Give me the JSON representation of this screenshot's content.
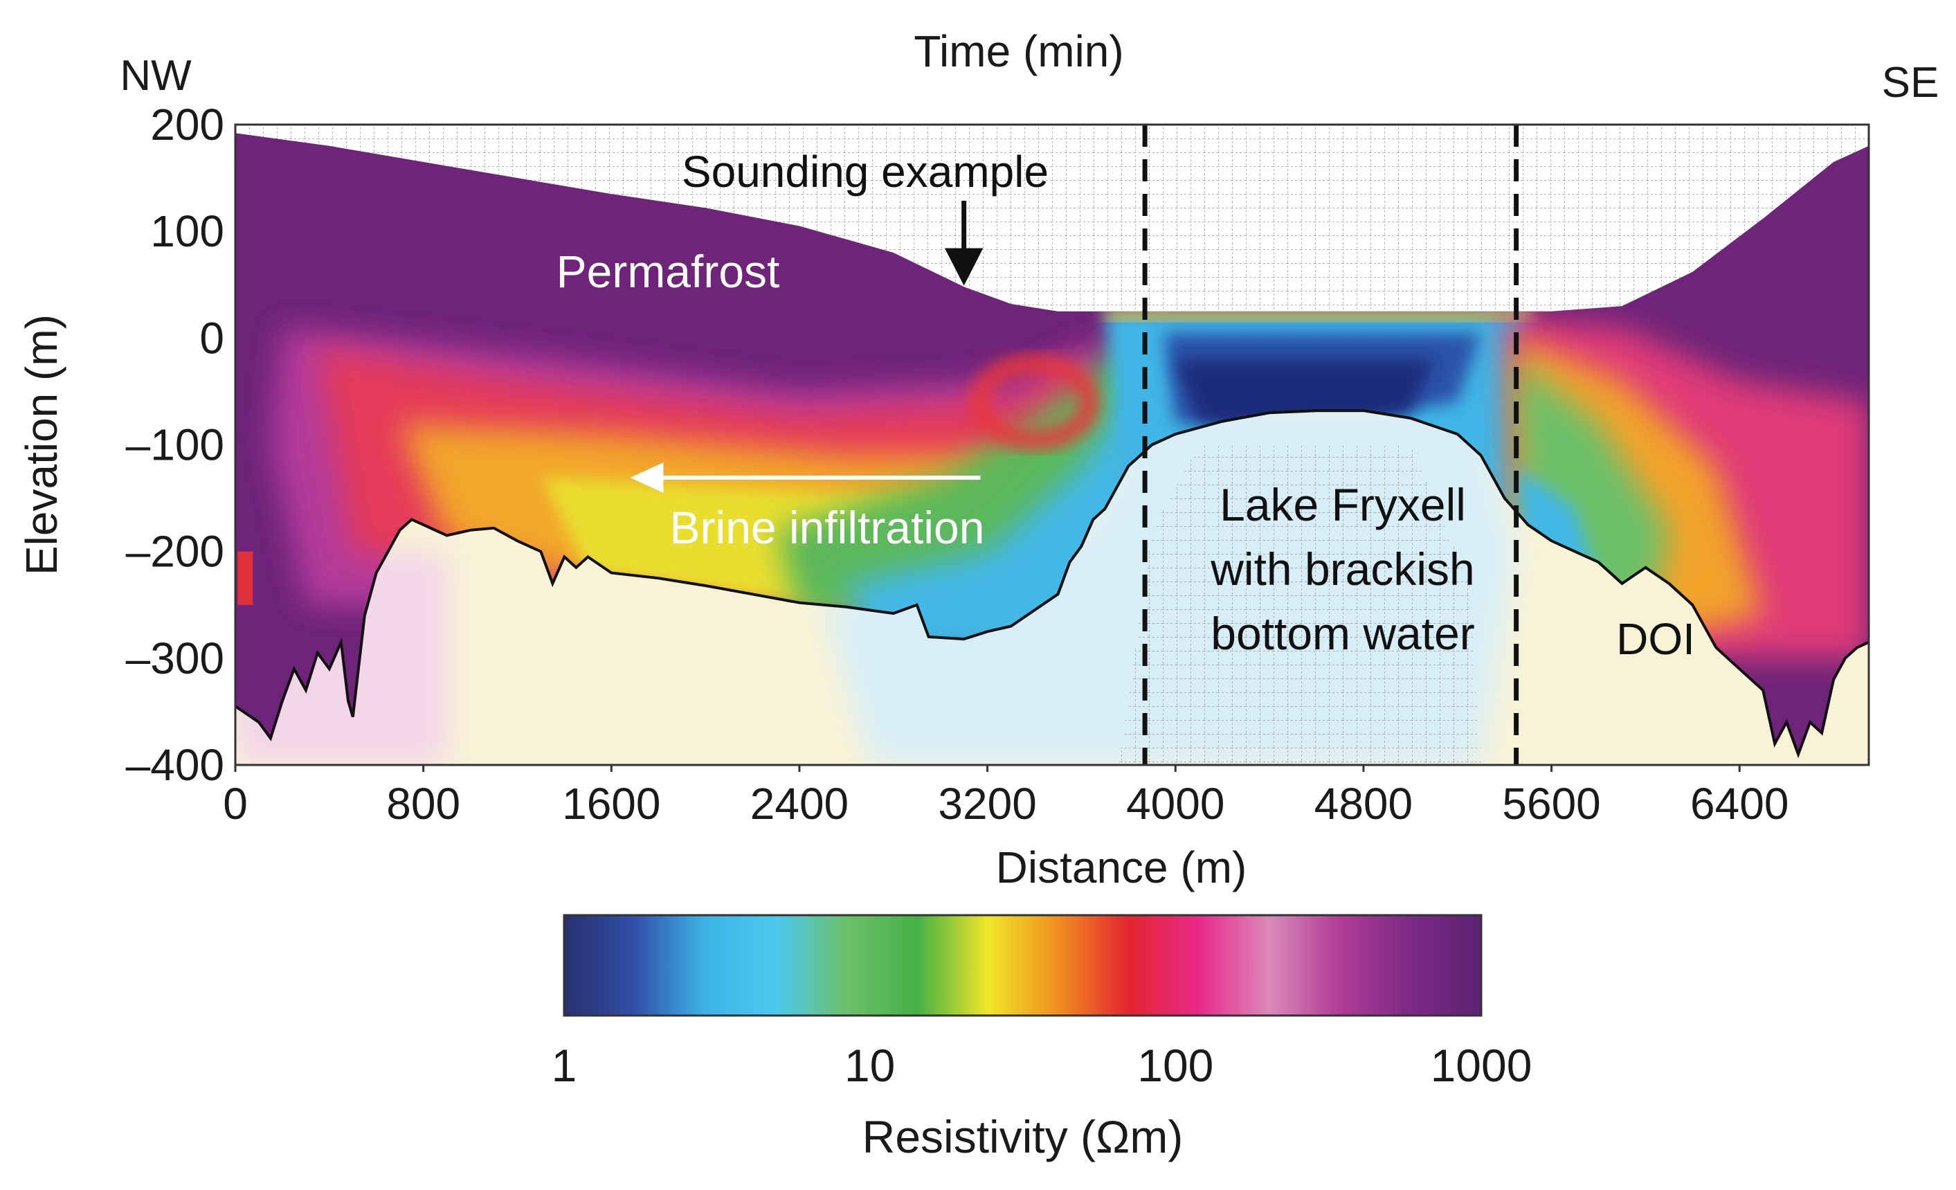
{
  "chart_data": {
    "type": "heatmap",
    "title": "",
    "top_label": "Time (min)",
    "orientation": {
      "left": "NW",
      "right": "SE"
    },
    "xlabel": "Distance (m)",
    "ylabel": "Elevation (m)",
    "xlim": [
      0,
      6950
    ],
    "ylim": [
      -400,
      200
    ],
    "x_ticks": [
      "0",
      "800",
      "1600",
      "2400",
      "3200",
      "4000",
      "4800",
      "5600",
      "6400"
    ],
    "y_ticks": [
      "200",
      "100",
      "0",
      "–100",
      "–200",
      "–300",
      "–400"
    ],
    "grid": true,
    "annotations": {
      "sounding": "Sounding example",
      "permafrost": "Permafrost",
      "brine": "Brine infiltration",
      "lake_line1": "Lake Fryxell",
      "lake_line2": "with brackish",
      "lake_line3": "bottom water",
      "doi": "DOI"
    },
    "dashed_lines_x": [
      3870,
      5450
    ],
    "sounding_x": 3100,
    "brine_arrow_x": [
      3170,
      1680
    ],
    "surface_profile": [
      [
        0,
        192
      ],
      [
        400,
        180
      ],
      [
        800,
        165
      ],
      [
        1200,
        150
      ],
      [
        1600,
        135
      ],
      [
        2000,
        122
      ],
      [
        2400,
        105
      ],
      [
        2800,
        80
      ],
      [
        3100,
        48
      ],
      [
        3300,
        32
      ],
      [
        3500,
        25
      ],
      [
        3800,
        25
      ],
      [
        4400,
        25
      ],
      [
        5000,
        25
      ],
      [
        5600,
        25
      ],
      [
        5900,
        30
      ],
      [
        6200,
        62
      ],
      [
        6500,
        112
      ],
      [
        6800,
        165
      ],
      [
        6950,
        180
      ]
    ],
    "doi_profile": [
      [
        0,
        -345
      ],
      [
        100,
        -360
      ],
      [
        150,
        -375
      ],
      [
        200,
        -340
      ],
      [
        250,
        -310
      ],
      [
        300,
        -330
      ],
      [
        350,
        -295
      ],
      [
        400,
        -310
      ],
      [
        450,
        -285
      ],
      [
        480,
        -340
      ],
      [
        500,
        -355
      ],
      [
        550,
        -260
      ],
      [
        600,
        -220
      ],
      [
        650,
        -200
      ],
      [
        700,
        -180
      ],
      [
        750,
        -170
      ],
      [
        800,
        -175
      ],
      [
        900,
        -185
      ],
      [
        1000,
        -180
      ],
      [
        1100,
        -178
      ],
      [
        1200,
        -190
      ],
      [
        1300,
        -200
      ],
      [
        1350,
        -230
      ],
      [
        1400,
        -205
      ],
      [
        1450,
        -215
      ],
      [
        1500,
        -205
      ],
      [
        1600,
        -220
      ],
      [
        1800,
        -225
      ],
      [
        2000,
        -232
      ],
      [
        2200,
        -240
      ],
      [
        2400,
        -248
      ],
      [
        2600,
        -252
      ],
      [
        2800,
        -258
      ],
      [
        2900,
        -250
      ],
      [
        2950,
        -280
      ],
      [
        3100,
        -282
      ],
      [
        3200,
        -275
      ],
      [
        3300,
        -270
      ],
      [
        3400,
        -255
      ],
      [
        3500,
        -240
      ],
      [
        3550,
        -210
      ],
      [
        3600,
        -195
      ],
      [
        3650,
        -170
      ],
      [
        3700,
        -160
      ],
      [
        3750,
        -140
      ],
      [
        3800,
        -120
      ],
      [
        3900,
        -100
      ],
      [
        4000,
        -90
      ],
      [
        4200,
        -78
      ],
      [
        4400,
        -70
      ],
      [
        4600,
        -68
      ],
      [
        4800,
        -68
      ],
      [
        5000,
        -75
      ],
      [
        5200,
        -90
      ],
      [
        5300,
        -110
      ],
      [
        5400,
        -150
      ],
      [
        5500,
        -175
      ],
      [
        5600,
        -190
      ],
      [
        5700,
        -200
      ],
      [
        5800,
        -210
      ],
      [
        5900,
        -230
      ],
      [
        6000,
        -215
      ],
      [
        6100,
        -230
      ],
      [
        6200,
        -250
      ],
      [
        6300,
        -290
      ],
      [
        6400,
        -310
      ],
      [
        6500,
        -330
      ],
      [
        6550,
        -380
      ],
      [
        6600,
        -360
      ],
      [
        6650,
        -390
      ],
      [
        6700,
        -360
      ],
      [
        6750,
        -370
      ],
      [
        6800,
        -320
      ],
      [
        6850,
        -300
      ],
      [
        6900,
        -290
      ],
      [
        6950,
        -285
      ]
    ],
    "colorbar": {
      "label": "Resistivity (Ωm)",
      "scale": "log",
      "range": [
        1,
        1000
      ],
      "ticks": [
        "1",
        "10",
        "100",
        "1000"
      ],
      "colors": [
        "#27306e",
        "#3250a8",
        "#3cb4e6",
        "#4bc9ee",
        "#6cc069",
        "#45b045",
        "#f0e628",
        "#f09020",
        "#e4252f",
        "#e82a8a",
        "#d98ab8",
        "#b03c96",
        "#7c2a85",
        "#5c2273"
      ]
    }
  }
}
